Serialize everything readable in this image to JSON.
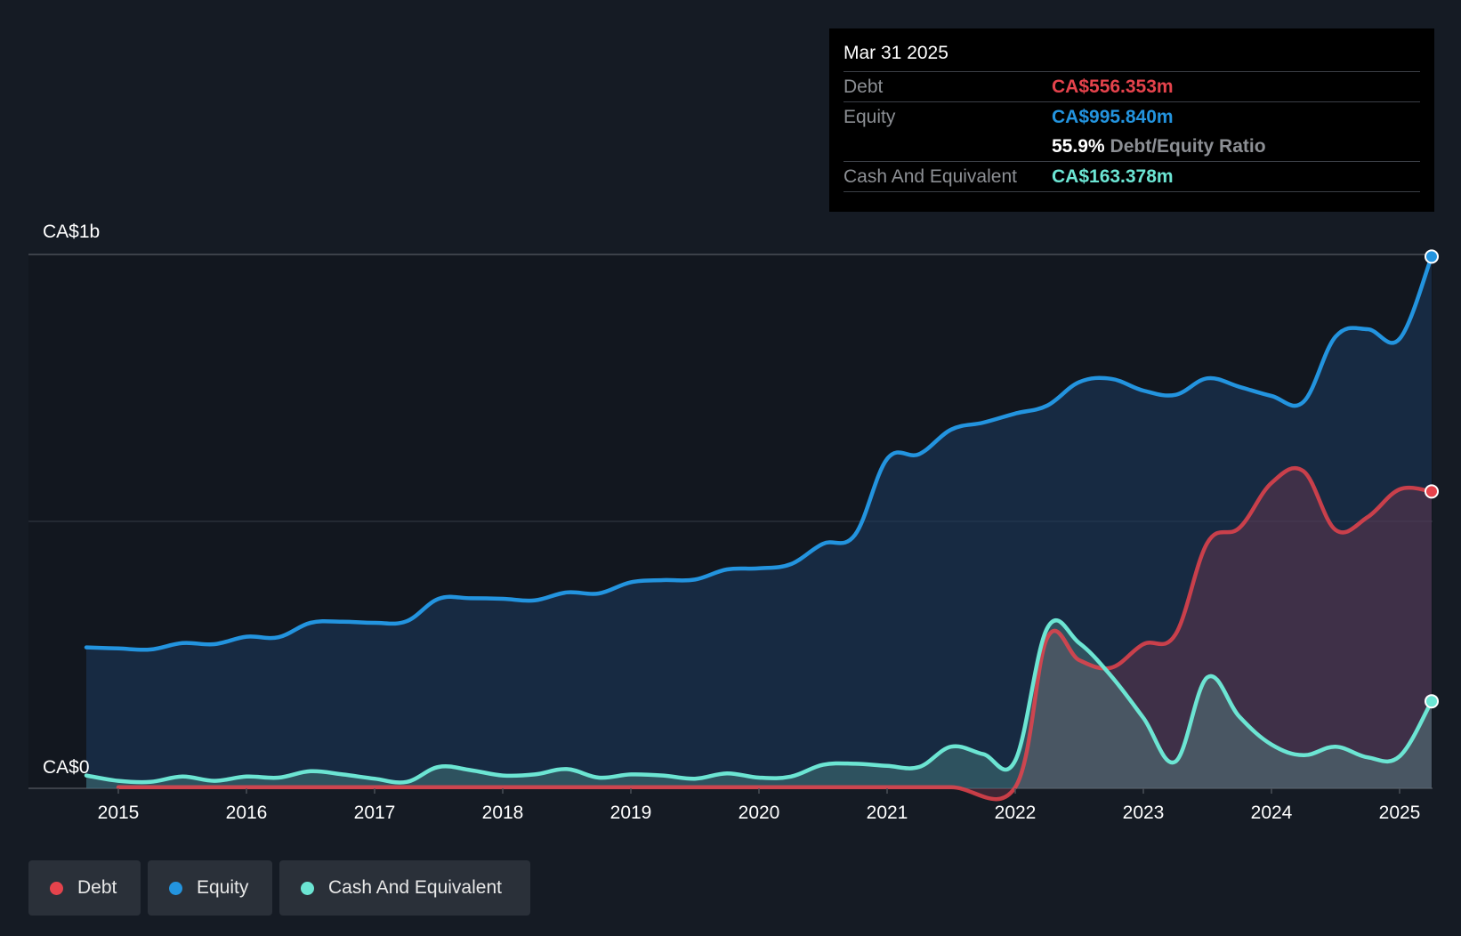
{
  "tooltip": {
    "date": "Mar 31 2025",
    "debt_label": "Debt",
    "debt_value": "CA$556.353m",
    "equity_label": "Equity",
    "equity_value": "CA$995.840m",
    "ratio_value": "55.9%",
    "ratio_label": "Debt/Equity Ratio",
    "cash_label": "Cash And Equivalent",
    "cash_value": "CA$163.378m"
  },
  "legend": [
    {
      "label": "Debt",
      "color": "#e5434c"
    },
    {
      "label": "Equity",
      "color": "#2394df"
    },
    {
      "label": "Cash And Equivalent",
      "color": "#6ce5d3"
    }
  ],
  "chart_data": {
    "type": "area",
    "title": "",
    "xlabel": "",
    "ylabel": "",
    "ylim": [
      0,
      1000
    ],
    "y_unit": "CA$m",
    "y_tick_labels": [
      "CA$0",
      "CA$1b"
    ],
    "x_ticks": [
      2015,
      2016,
      2017,
      2018,
      2019,
      2020,
      2021,
      2022,
      2023,
      2024,
      2025
    ],
    "x_range": [
      2014.67,
      2025.25
    ],
    "series": [
      {
        "name": "Equity",
        "color": "#2394df",
        "x": [
          2014.75,
          2015.0,
          2015.25,
          2015.5,
          2015.75,
          2016.0,
          2016.25,
          2016.5,
          2016.75,
          2017.0,
          2017.25,
          2017.5,
          2017.75,
          2018.0,
          2018.25,
          2018.5,
          2018.75,
          2019.0,
          2019.25,
          2019.5,
          2019.75,
          2020.0,
          2020.25,
          2020.5,
          2020.75,
          2021.0,
          2021.25,
          2021.5,
          2021.75,
          2022.0,
          2022.25,
          2022.5,
          2022.75,
          2023.0,
          2023.25,
          2023.5,
          2023.75,
          2024.0,
          2024.25,
          2024.5,
          2024.75,
          2025.0,
          2025.25
        ],
        "values": [
          264,
          262,
          260,
          272,
          270,
          284,
          283,
          310,
          312,
          310,
          313,
          355,
          356,
          355,
          352,
          367,
          365,
          386,
          390,
          391,
          410,
          412,
          420,
          458,
          475,
          617,
          626,
          672,
          685,
          702,
          717,
          761,
          767,
          745,
          737,
          768,
          752,
          735,
          724,
          846,
          860,
          842,
          996
        ]
      },
      {
        "name": "Debt",
        "color": "#e5434c",
        "x": [
          2015.0,
          2015.5,
          2016.0,
          2016.5,
          2017.0,
          2017.5,
          2018.0,
          2018.5,
          2019.0,
          2019.5,
          2020.0,
          2020.5,
          2021.0,
          2021.5,
          2022.0,
          2022.25,
          2022.5,
          2022.75,
          2023.0,
          2023.25,
          2023.5,
          2023.75,
          2024.0,
          2024.25,
          2024.5,
          2024.75,
          2025.0,
          2025.25
        ],
        "values": [
          2,
          2,
          2,
          2,
          2,
          2,
          2,
          2,
          2,
          2,
          2,
          2,
          2,
          2,
          2,
          282,
          240,
          226,
          270,
          288,
          460,
          488,
          572,
          594,
          484,
          508,
          560,
          556
        ]
      },
      {
        "name": "Cash And Equivalent",
        "color": "#6ce5d3",
        "x": [
          2014.75,
          2015.0,
          2015.25,
          2015.5,
          2015.75,
          2016.0,
          2016.25,
          2016.5,
          2016.75,
          2017.0,
          2017.25,
          2017.5,
          2017.75,
          2018.0,
          2018.25,
          2018.5,
          2018.75,
          2019.0,
          2019.25,
          2019.5,
          2019.75,
          2020.0,
          2020.25,
          2020.5,
          2020.75,
          2021.0,
          2021.25,
          2021.5,
          2021.75,
          2022.0,
          2022.25,
          2022.5,
          2022.75,
          2023.0,
          2023.25,
          2023.5,
          2023.75,
          2024.0,
          2024.25,
          2024.5,
          2024.75,
          2025.0,
          2025.25
        ],
        "values": [
          24,
          14,
          12,
          22,
          14,
          22,
          20,
          32,
          26,
          18,
          12,
          40,
          34,
          24,
          26,
          36,
          20,
          26,
          24,
          18,
          28,
          20,
          22,
          44,
          46,
          42,
          40,
          78,
          64,
          52,
          300,
          272,
          210,
          132,
          50,
          208,
          134,
          82,
          62,
          78,
          58,
          60,
          163
        ]
      }
    ]
  }
}
